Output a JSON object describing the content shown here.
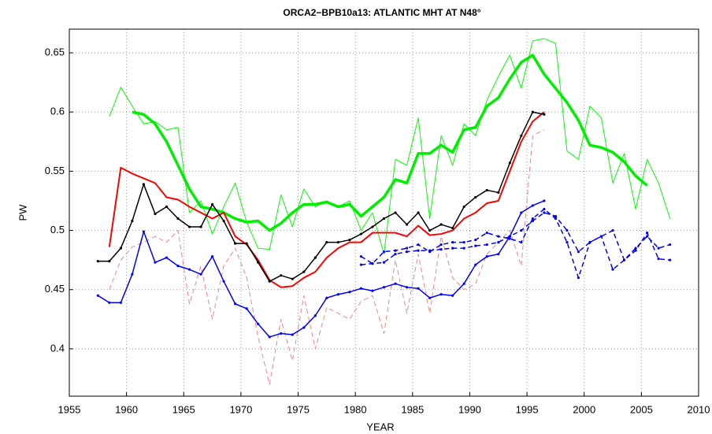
{
  "chart_data": {
    "type": "line",
    "title": "ORCA2−BPB10a13: ATLANTIC MHT AT N48°",
    "xlabel": "YEAR",
    "ylabel": "PW",
    "xlim": [
      1955,
      2010
    ],
    "xticks": [
      1955,
      1960,
      1965,
      1970,
      1975,
      1980,
      1985,
      1990,
      1995,
      2000,
      2005,
      2010
    ],
    "ylim": [
      0.36,
      0.67
    ],
    "yticks": [
      0.4,
      0.45,
      0.5,
      0.55,
      0.6,
      0.65
    ],
    "grid": true,
    "series": [
      {
        "color": "#ff8080",
        "width": 1,
        "dash": true,
        "markers": false,
        "x": [
          1958.5,
          1959.5,
          1960.5,
          1961.5,
          1962.5,
          1963.5,
          1964.5,
          1965.5,
          1966.5,
          1967.5,
          1968.5,
          1969.5,
          1970.5,
          1971.5,
          1972.5,
          1973.5,
          1974.5,
          1975.5,
          1976.5,
          1977.5,
          1978.5,
          1979.5,
          1980.5,
          1981.5,
          1982.5,
          1983.5,
          1984.5,
          1985.5,
          1986.5,
          1987.5,
          1988.5,
          1989.5,
          1990.5,
          1991.5,
          1992.5,
          1993.5,
          1994.5,
          1995.5,
          1996.5
        ],
        "values": [
          0.45,
          0.475,
          0.486,
          0.49,
          0.495,
          0.49,
          0.5,
          0.438,
          0.47,
          0.425,
          0.47,
          0.485,
          0.46,
          0.41,
          0.37,
          0.425,
          0.39,
          0.445,
          0.4,
          0.435,
          0.43,
          0.425,
          0.44,
          0.445,
          0.413,
          0.475,
          0.43,
          0.48,
          0.43,
          0.495,
          0.46,
          0.45,
          0.455,
          0.48,
          0.49,
          0.5,
          0.47,
          0.58,
          0.585
        ]
      },
      {
        "color": "#00ff00",
        "width": 1,
        "dash": false,
        "markers": false,
        "x": [
          1958.5,
          1959.5,
          1960.5,
          1961.5,
          1962.5,
          1963.5,
          1964.5,
          1965.5,
          1966.5,
          1967.5,
          1968.5,
          1969.5,
          1970.5,
          1971.5,
          1972.5,
          1973.5,
          1974.5,
          1975.5,
          1976.5,
          1977.5,
          1978.5,
          1979.5,
          1980.5,
          1981.5,
          1982.5,
          1983.5,
          1984.5,
          1985.5,
          1986.5,
          1987.5,
          1988.5,
          1989.5,
          1990.5,
          1991.5,
          1992.5,
          1993.5,
          1994.5,
          1995.5,
          1996.5,
          1997.5,
          1998.5,
          1999.5,
          2000.5,
          2001.5,
          2002.5,
          2003.5,
          2004.5,
          2005.5,
          2006.5,
          2007.5
        ],
        "values": [
          0.596,
          0.621,
          0.605,
          0.59,
          0.592,
          0.585,
          0.587,
          0.515,
          0.525,
          0.497,
          0.52,
          0.54,
          0.507,
          0.485,
          0.484,
          0.53,
          0.503,
          0.535,
          0.52,
          0.525,
          0.52,
          0.525,
          0.5,
          0.515,
          0.48,
          0.56,
          0.555,
          0.595,
          0.51,
          0.58,
          0.555,
          0.59,
          0.58,
          0.61,
          0.63,
          0.648,
          0.62,
          0.66,
          0.662,
          0.658,
          0.567,
          0.56,
          0.605,
          0.595,
          0.54,
          0.565,
          0.518,
          0.56,
          0.54,
          0.51
        ]
      },
      {
        "color": "#00ee00",
        "width": 3.5,
        "dash": false,
        "markers": false,
        "x": [
          1960.5,
          1961.5,
          1962.5,
          1963.5,
          1964.5,
          1965.5,
          1966.5,
          1967.5,
          1968.5,
          1969.5,
          1970.5,
          1971.5,
          1972.5,
          1973.5,
          1974.5,
          1975.5,
          1976.5,
          1977.5,
          1978.5,
          1979.5,
          1980.5,
          1981.5,
          1982.5,
          1983.5,
          1984.5,
          1985.5,
          1986.5,
          1987.5,
          1988.5,
          1989.5,
          1990.5,
          1991.5,
          1992.5,
          1993.5,
          1994.5,
          1995.5,
          1996.5,
          1997.5,
          1998.5,
          1999.5,
          2000.5,
          2001.5,
          2002.5,
          2003.5,
          2004.5,
          2005.5
        ],
        "values": [
          0.6,
          0.598,
          0.59,
          0.575,
          0.555,
          0.535,
          0.52,
          0.518,
          0.515,
          0.51,
          0.507,
          0.508,
          0.5,
          0.506,
          0.515,
          0.522,
          0.522,
          0.524,
          0.52,
          0.522,
          0.512,
          0.52,
          0.528,
          0.543,
          0.54,
          0.565,
          0.565,
          0.572,
          0.566,
          0.585,
          0.587,
          0.605,
          0.612,
          0.628,
          0.642,
          0.648,
          0.632,
          0.62,
          0.608,
          0.593,
          0.572,
          0.57,
          0.566,
          0.558,
          0.546,
          0.538
        ]
      },
      {
        "color": "#ff0000",
        "width": 2,
        "dash": false,
        "markers": false,
        "x": [
          1958.5,
          1959.5,
          1960.5,
          1961.5,
          1962.5,
          1963.5,
          1964.5,
          1965.5,
          1966.5,
          1967.5,
          1968.5,
          1969.5,
          1970.5,
          1971.5,
          1972.5,
          1973.5,
          1974.5,
          1975.5,
          1976.5,
          1977.5,
          1978.5,
          1979.5,
          1980.5,
          1981.5,
          1982.5,
          1983.5,
          1984.5,
          1985.5,
          1986.5,
          1987.5,
          1988.5,
          1989.5,
          1990.5,
          1991.5,
          1992.5,
          1993.5,
          1994.5,
          1995.5,
          1996.5
        ],
        "values": [
          0.486,
          0.553,
          0.548,
          0.544,
          0.54,
          0.528,
          0.526,
          0.52,
          0.515,
          0.51,
          0.515,
          0.495,
          0.488,
          0.475,
          0.458,
          0.452,
          0.453,
          0.46,
          0.465,
          0.477,
          0.485,
          0.49,
          0.49,
          0.498,
          0.498,
          0.498,
          0.495,
          0.504,
          0.496,
          0.497,
          0.5,
          0.51,
          0.515,
          0.523,
          0.525,
          0.55,
          0.575,
          0.592,
          0.6
        ]
      },
      {
        "color": "#000000",
        "width": 1.5,
        "dash": false,
        "markers": true,
        "x": [
          1957.5,
          1958.5,
          1959.5,
          1960.5,
          1961.5,
          1962.5,
          1963.5,
          1964.5,
          1965.5,
          1966.5,
          1967.5,
          1968.5,
          1969.5,
          1970.5,
          1971.5,
          1972.5,
          1973.5,
          1974.5,
          1975.5,
          1976.5,
          1977.5,
          1978.5,
          1979.5,
          1980.5,
          1981.5,
          1982.5,
          1983.5,
          1984.5,
          1985.5,
          1986.5,
          1987.5,
          1988.5,
          1989.5,
          1990.5,
          1991.5,
          1992.5,
          1993.5,
          1994.5,
          1995.5,
          1996.5
        ],
        "values": [
          0.474,
          0.474,
          0.485,
          0.508,
          0.539,
          0.514,
          0.52,
          0.51,
          0.503,
          0.503,
          0.522,
          0.508,
          0.489,
          0.489,
          0.473,
          0.457,
          0.462,
          0.459,
          0.465,
          0.477,
          0.49,
          0.49,
          0.492,
          0.497,
          0.503,
          0.51,
          0.515,
          0.505,
          0.515,
          0.5,
          0.505,
          0.502,
          0.52,
          0.528,
          0.534,
          0.532,
          0.557,
          0.58,
          0.6,
          0.598
        ]
      },
      {
        "color": "#0000ff",
        "width": 1.5,
        "dash": false,
        "markers": true,
        "x": [
          1957.5,
          1958.5,
          1959.5,
          1960.5,
          1961.5,
          1962.5,
          1963.5,
          1964.5,
          1965.5,
          1966.5,
          1967.5,
          1968.5,
          1969.5,
          1970.5,
          1971.5,
          1972.5,
          1973.5,
          1974.5,
          1975.5,
          1976.5,
          1977.5,
          1978.5,
          1979.5,
          1980.5,
          1981.5,
          1982.5,
          1983.5,
          1984.5,
          1985.5,
          1986.5,
          1987.5,
          1988.5,
          1989.5,
          1990.5,
          1991.5,
          1992.5,
          1993.5,
          1994.5,
          1995.5,
          1996.5
        ],
        "values": [
          0.445,
          0.439,
          0.439,
          0.463,
          0.499,
          0.473,
          0.477,
          0.47,
          0.467,
          0.463,
          0.478,
          0.457,
          0.438,
          0.434,
          0.421,
          0.41,
          0.413,
          0.412,
          0.418,
          0.428,
          0.443,
          0.446,
          0.448,
          0.451,
          0.449,
          0.452,
          0.455,
          0.452,
          0.451,
          0.443,
          0.446,
          0.445,
          0.455,
          0.471,
          0.478,
          0.48,
          0.495,
          0.515,
          0.521,
          0.525
        ]
      },
      {
        "color": "#0000ff",
        "width": 1.5,
        "dash": true,
        "markers": true,
        "x": [
          1980.5,
          1981.5,
          1982.5,
          1983.5,
          1984.5,
          1985.5,
          1986.5,
          1987.5,
          1988.5,
          1989.5,
          1990.5,
          1991.5,
          1992.5,
          1993.5,
          1994.5,
          1995.5,
          1996.5,
          1997.5,
          1998.5,
          1999.5,
          2000.5,
          2001.5,
          2002.5,
          2003.5,
          2004.5,
          2005.5,
          2006.5,
          2007.5
        ],
        "values": [
          0.478,
          0.472,
          0.482,
          0.483,
          0.485,
          0.488,
          0.482,
          0.488,
          0.49,
          0.49,
          0.492,
          0.498,
          0.495,
          0.493,
          0.49,
          0.51,
          0.518,
          0.51,
          0.49,
          0.46,
          0.49,
          0.495,
          0.5,
          0.475,
          0.485,
          0.495,
          0.485,
          0.488
        ]
      },
      {
        "color": "#0000ff",
        "width": 1.5,
        "dash": true,
        "markers": true,
        "x": [
          1980.5,
          1981.5,
          1982.5,
          1983.5,
          1984.5,
          1985.5,
          1986.5,
          1987.5,
          1988.5,
          1989.5,
          1990.5,
          1991.5,
          1992.5,
          1993.5,
          1994.5,
          1995.5,
          1996.5,
          1997.5,
          1998.5,
          1999.5,
          2000.5,
          2001.5,
          2002.5,
          2003.5,
          2004.5,
          2005.5,
          2006.5,
          2007.5
        ],
        "values": [
          0.471,
          0.472,
          0.473,
          0.48,
          0.482,
          0.483,
          0.483,
          0.484,
          0.485,
          0.485,
          0.487,
          0.488,
          0.49,
          0.495,
          0.5,
          0.508,
          0.515,
          0.512,
          0.5,
          0.482,
          0.49,
          0.495,
          0.467,
          0.475,
          0.483,
          0.498,
          0.476,
          0.475
        ]
      }
    ]
  }
}
